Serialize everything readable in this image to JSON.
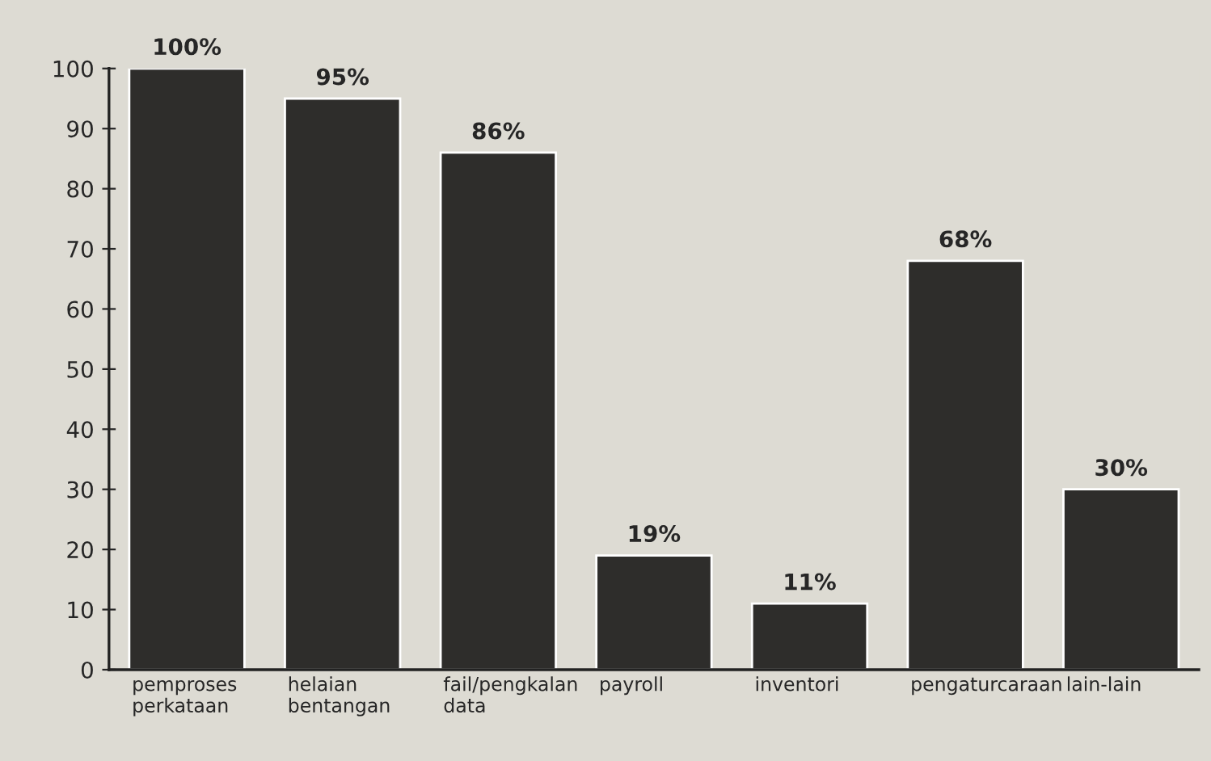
{
  "chart_data": {
    "type": "bar",
    "categories": [
      "pemproses perkataan",
      "helaian bentangan",
      "fail/pengkalan data",
      "payroll",
      "inventori",
      "pengaturcaraan",
      "lain-lain"
    ],
    "values": [
      100,
      95,
      86,
      19,
      11,
      68,
      30
    ],
    "value_labels": [
      "100%",
      "95%",
      "86%",
      "19%",
      "11%",
      "68%",
      "30%"
    ],
    "color": "#2e2d2b",
    "ylim": [
      0,
      100
    ],
    "yticks": [
      0,
      10,
      20,
      30,
      40,
      50,
      60,
      70,
      80,
      90,
      100
    ],
    "grid": false
  }
}
